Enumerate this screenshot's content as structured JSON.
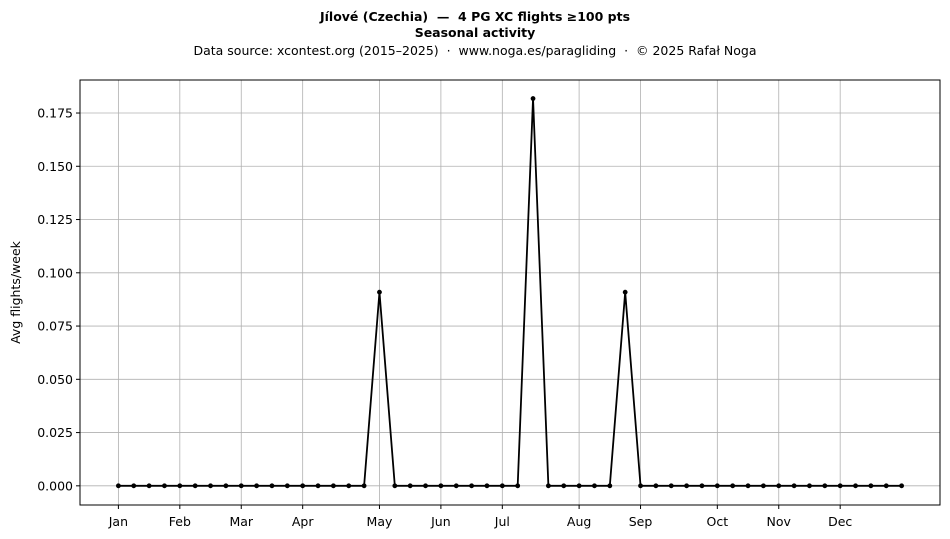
{
  "chart_data": {
    "type": "line",
    "title": "Jílové (Czechia)  —  4 PG XC flights ≥100 pts",
    "title2": "Seasonal activity",
    "subtitle": "Data source: xcontest.org (2015–2025)  ·  www.noga.es/paragliding  ·  © 2025 Rafał Noga",
    "xlabel": "",
    "ylabel": "Avg flights/week",
    "ylim": [
      -0.009,
      0.1905
    ],
    "yticks": [
      "0.000",
      "0.025",
      "0.050",
      "0.075",
      "0.100",
      "0.125",
      "0.150",
      "0.175"
    ],
    "ytick_values": [
      0,
      0.025,
      0.05,
      0.075,
      0.1,
      0.125,
      0.15,
      0.175
    ],
    "xlim": [
      -2.5,
      53.5
    ],
    "xticks": [
      "Jan",
      "Feb",
      "Mar",
      "Apr",
      "May",
      "Jun",
      "Jul",
      "Aug",
      "Sep",
      "Oct",
      "Nov",
      "Dec"
    ],
    "xtick_weeks": [
      0,
      4,
      8,
      12,
      17,
      21,
      25,
      30,
      34,
      39,
      43,
      47
    ],
    "grid": true,
    "line_color": "#000000",
    "x": [
      0,
      1,
      2,
      3,
      4,
      5,
      6,
      7,
      8,
      9,
      10,
      11,
      12,
      13,
      14,
      15,
      16,
      17,
      18,
      19,
      20,
      21,
      22,
      23,
      24,
      25,
      26,
      27,
      28,
      29,
      30,
      31,
      32,
      33,
      34,
      35,
      36,
      37,
      38,
      39,
      40,
      41,
      42,
      43,
      44,
      45,
      46,
      47,
      48,
      49,
      50,
      51
    ],
    "values": [
      0,
      0,
      0,
      0,
      0,
      0,
      0,
      0,
      0,
      0,
      0,
      0,
      0,
      0,
      0,
      0,
      0,
      0.0909,
      0,
      0,
      0,
      0,
      0,
      0,
      0,
      0,
      0,
      0.1818,
      0,
      0,
      0,
      0,
      0,
      0.0909,
      0,
      0,
      0,
      0,
      0,
      0,
      0,
      0,
      0,
      0,
      0,
      0,
      0,
      0,
      0,
      0,
      0,
      0
    ]
  }
}
